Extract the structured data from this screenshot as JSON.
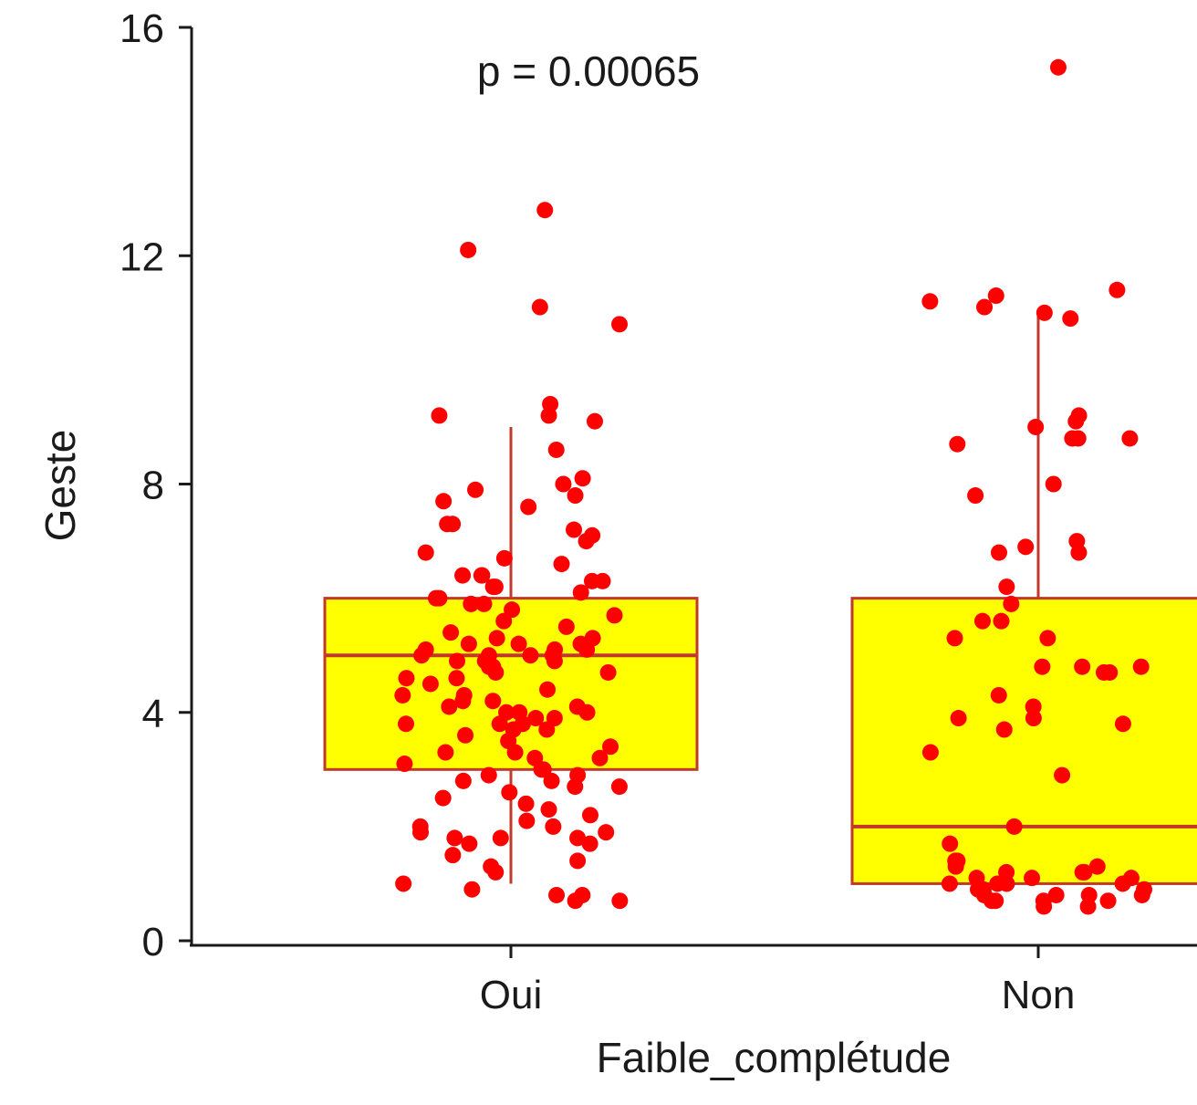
{
  "chart_data": {
    "type": "boxplot",
    "xlabel": "Faible_complétude",
    "ylabel": "Geste",
    "ylim": [
      0,
      16
    ],
    "yticks": [
      "0",
      "4",
      "8",
      "12",
      "16"
    ],
    "categories": [
      "Oui",
      "Non"
    ],
    "annotation": "p = 0.00065",
    "colors": {
      "box_fill": "#ffff00",
      "box_line": "#c0392b",
      "points": "#ff0000"
    },
    "boxes": [
      {
        "category": "Oui",
        "whisker_low": 1.0,
        "q1": 3.0,
        "median": 5.0,
        "q3": 6.0,
        "whisker_high": 9.0
      },
      {
        "category": "Non",
        "whisker_low": 1.0,
        "q1": 1.0,
        "median": 2.0,
        "q3": 6.0,
        "whisker_high": 11.0
      }
    ],
    "points": [
      {
        "category": "Oui",
        "values": [
          12.8,
          12.1,
          11.1,
          10.8,
          9.4,
          9.2,
          9.2,
          9.1,
          8.6,
          8.1,
          8.0,
          7.9,
          7.8,
          7.7,
          7.6,
          7.3,
          7.3,
          7.2,
          7.1,
          7.0,
          6.8,
          6.7,
          6.6,
          6.4,
          6.4,
          6.4,
          6.3,
          6.3,
          6.2,
          6.2,
          6.1,
          6.0,
          6.0,
          5.9,
          5.9,
          5.8,
          5.7,
          5.6,
          5.5,
          5.4,
          5.3,
          5.3,
          5.2,
          5.2,
          5.2,
          5.1,
          5.1,
          5.1,
          5.0,
          5.0,
          5.0,
          5.0,
          4.9,
          4.9,
          4.9,
          4.8,
          4.8,
          4.7,
          4.7,
          4.6,
          4.6,
          4.5,
          4.4,
          4.3,
          4.3,
          4.2,
          4.2,
          4.1,
          4.1,
          4.0,
          4.0,
          4.0,
          3.9,
          3.9,
          3.8,
          3.8,
          3.8,
          3.7,
          3.7,
          3.6,
          3.5,
          3.4,
          3.3,
          3.3,
          3.2,
          3.2,
          3.1,
          3.0,
          3.0,
          2.9,
          2.9,
          2.8,
          2.8,
          2.7,
          2.7,
          2.6,
          2.5,
          2.4,
          2.3,
          2.2,
          2.1,
          2.0,
          2.0,
          1.9,
          1.9,
          1.8,
          1.8,
          1.8,
          1.7,
          1.7,
          1.5,
          1.4,
          1.3,
          1.2,
          1.0,
          0.9,
          0.8,
          0.8,
          0.7,
          0.7
        ]
      },
      {
        "category": "Non",
        "values": [
          15.3,
          11.4,
          11.3,
          11.2,
          11.1,
          11.0,
          10.9,
          9.2,
          9.1,
          9.0,
          8.8,
          8.8,
          8.8,
          8.7,
          8.0,
          7.8,
          7.0,
          6.9,
          6.8,
          6.8,
          6.2,
          5.9,
          5.6,
          5.6,
          5.3,
          5.3,
          4.8,
          4.8,
          4.8,
          4.7,
          4.7,
          4.3,
          4.1,
          3.9,
          3.9,
          3.8,
          3.7,
          3.3,
          2.9,
          2.0,
          1.7,
          1.4,
          1.4,
          1.3,
          1.3,
          1.2,
          1.2,
          1.2,
          1.1,
          1.1,
          1.1,
          1.0,
          1.0,
          1.0,
          1.0,
          0.9,
          0.9,
          0.9,
          0.8,
          0.8,
          0.8,
          0.8,
          0.7,
          0.7,
          0.7,
          0.7,
          0.6,
          0.6
        ]
      }
    ]
  }
}
